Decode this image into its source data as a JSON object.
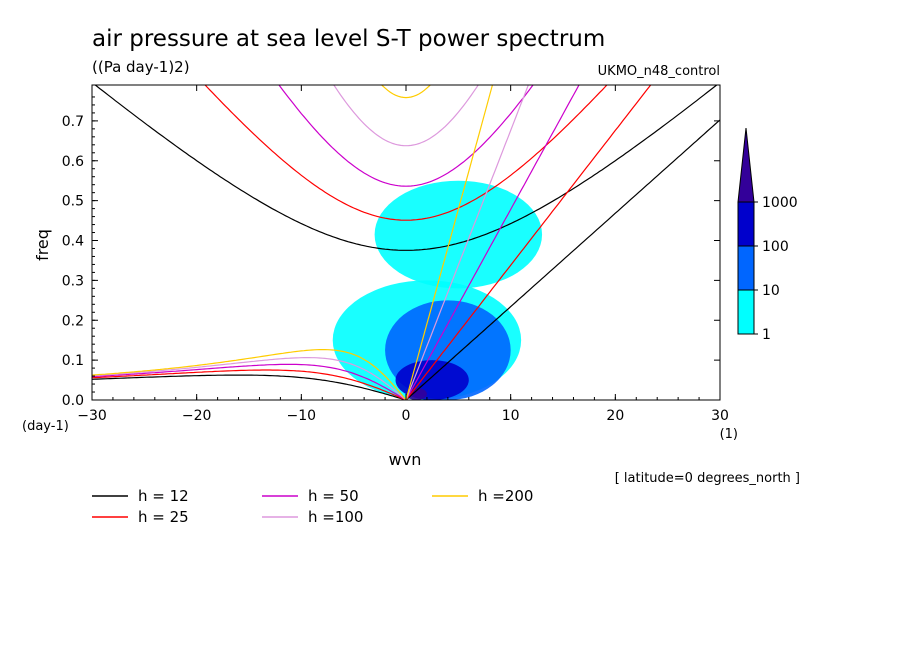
{
  "title": "air pressure at sea level S-T power spectrum",
  "units": "((Pa day-1)2)",
  "source": "UKMO_n48_control",
  "note": "[ latitude=0 degrees_north ]",
  "chart_data": {
    "type": "heatmap",
    "xlabel": "wvn",
    "ylabel": "freq",
    "xunit": "(1)",
    "yunit": "(day-1)",
    "xlim": [
      -30,
      30
    ],
    "ylim": [
      0,
      0.79
    ],
    "xticks": [
      -30,
      -20,
      -10,
      0,
      10,
      20,
      30
    ],
    "yticks": [
      0.0,
      0.1,
      0.2,
      0.3,
      0.4,
      0.5,
      0.6,
      0.7
    ],
    "colorbar": {
      "levels": [
        "1",
        "10",
        "100",
        "1000"
      ],
      "colors": [
        "#00ffff",
        "#0066ff",
        "#0000cc",
        "#330099"
      ]
    },
    "dispersion_curves": [
      {
        "name": "h = 12",
        "color": "#000000",
        "h": 12
      },
      {
        "name": "h = 25",
        "color": "#ff0000",
        "h": 25
      },
      {
        "name": "h = 50",
        "color": "#cc00cc",
        "h": 50
      },
      {
        "name": "h =100",
        "color": "#dd99dd",
        "h": 100
      },
      {
        "name": "h =200",
        "color": "#ffcc00",
        "h": 200
      }
    ],
    "power_regions": [
      {
        "level": 1,
        "wvn": [
          -7,
          11
        ],
        "freq": [
          0.0,
          0.3
        ]
      },
      {
        "level": 1,
        "wvn": [
          -3,
          13
        ],
        "freq": [
          0.28,
          0.55
        ]
      },
      {
        "level": 2,
        "wvn": [
          -2,
          10
        ],
        "freq": [
          0.0,
          0.25
        ]
      },
      {
        "level": 3,
        "wvn": [
          -1,
          6
        ],
        "freq": [
          0.0,
          0.1
        ]
      },
      {
        "level": 4,
        "wvn": [
          0,
          2
        ],
        "freq": [
          0.0,
          0.03
        ]
      }
    ]
  }
}
